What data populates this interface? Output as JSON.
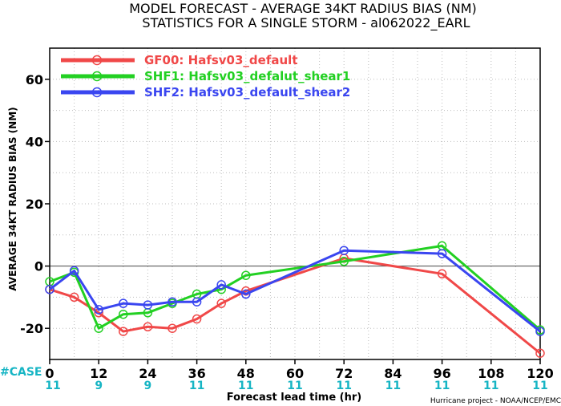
{
  "chart_data": {
    "type": "line",
    "title": "MODEL FORECAST - AVERAGE 34KT RADIUS BIAS (NM)",
    "subtitle": "STATISTICS FOR A SINGLE STORM - al062022_EARL",
    "xlabel": "Forecast lead time (hr)",
    "ylabel": "AVERAGE 34KT RADIUS BIAS (NM)",
    "xlim": [
      0,
      120
    ],
    "ylim": [
      -30,
      70
    ],
    "x_ticks": [
      0,
      12,
      24,
      36,
      48,
      60,
      72,
      84,
      96,
      108,
      120
    ],
    "y_ticks": [
      -20,
      0,
      20,
      40,
      60
    ],
    "grid": true,
    "legend_position": "top-left",
    "case_label": "#CASE",
    "case_counts": [
      {
        "x": 0,
        "label": "11"
      },
      {
        "x": 12,
        "label": "9"
      },
      {
        "x": 24,
        "label": "9"
      },
      {
        "x": 36,
        "label": "11"
      },
      {
        "x": 48,
        "label": "11"
      },
      {
        "x": 60,
        "label": "11"
      },
      {
        "x": 72,
        "label": "11"
      },
      {
        "x": 84,
        "label": "11"
      },
      {
        "x": 96,
        "label": "11"
      },
      {
        "x": 108,
        "label": "11"
      },
      {
        "x": 120,
        "label": "11"
      }
    ],
    "credit": "Hurricane project - NOAA/NCEP/EMC",
    "series": [
      {
        "name": "GF00: Hafsv03_default",
        "color": "#f04848",
        "points": [
          {
            "x": 0,
            "y": -7.5
          },
          {
            "x": 6,
            "y": -10
          },
          {
            "x": 12,
            "y": -15
          },
          {
            "x": 18,
            "y": -21
          },
          {
            "x": 24,
            "y": -19.5
          },
          {
            "x": 30,
            "y": -20
          },
          {
            "x": 36,
            "y": -17
          },
          {
            "x": 42,
            "y": -12
          },
          {
            "x": 48,
            "y": -8
          },
          {
            "x": 72,
            "y": 2.5
          },
          {
            "x": 96,
            "y": -2.5
          },
          {
            "x": 120,
            "y": -28
          }
        ]
      },
      {
        "name": "SHF1: Hafsv03_defalut_shear1",
        "color": "#22d022",
        "points": [
          {
            "x": 0,
            "y": -5
          },
          {
            "x": 6,
            "y": -2
          },
          {
            "x": 12,
            "y": -20
          },
          {
            "x": 18,
            "y": -15.5
          },
          {
            "x": 24,
            "y": -15
          },
          {
            "x": 30,
            "y": -12
          },
          {
            "x": 36,
            "y": -9
          },
          {
            "x": 42,
            "y": -7.5
          },
          {
            "x": 48,
            "y": -3
          },
          {
            "x": 72,
            "y": 1.5
          },
          {
            "x": 96,
            "y": 6.5
          },
          {
            "x": 120,
            "y": -20.5
          }
        ]
      },
      {
        "name": "SHF2: Hafsv03_default_shear2",
        "color": "#3a46f0",
        "points": [
          {
            "x": 0,
            "y": -7.5
          },
          {
            "x": 6,
            "y": -1.5
          },
          {
            "x": 12,
            "y": -14
          },
          {
            "x": 18,
            "y": -12
          },
          {
            "x": 24,
            "y": -12.5
          },
          {
            "x": 30,
            "y": -11.5
          },
          {
            "x": 36,
            "y": -11.5
          },
          {
            "x": 42,
            "y": -6
          },
          {
            "x": 48,
            "y": -9
          },
          {
            "x": 72,
            "y": 5
          },
          {
            "x": 96,
            "y": 4
          },
          {
            "x": 120,
            "y": -21
          }
        ]
      }
    ]
  }
}
